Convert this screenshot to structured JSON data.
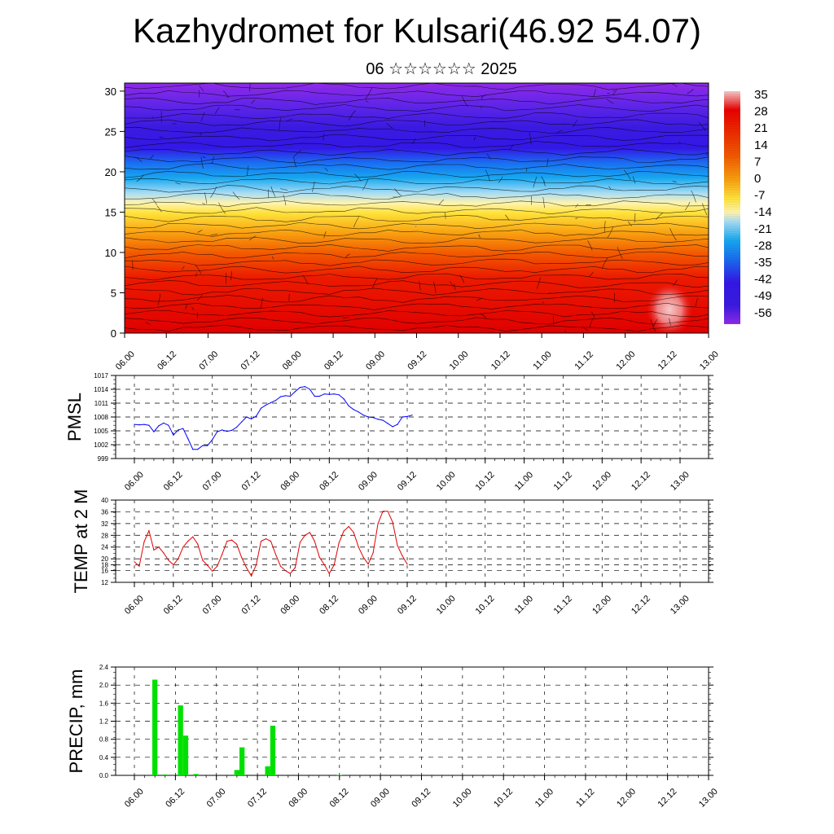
{
  "header": {
    "title": "Kazhydromet for Kulsari(46.92 54.07)",
    "subtitle": "06 ☆☆☆☆☆☆ 2025"
  },
  "chart_data": [
    {
      "type": "heatmap",
      "ylim": [
        0,
        31
      ],
      "y_ticks": [
        "0",
        "5",
        "10",
        "15",
        "20",
        "25",
        "30"
      ],
      "x_tick_labels": [
        "06.00",
        "06.12",
        "07.00",
        "07.12",
        "08.00",
        "08.12",
        "09.00",
        "09.12",
        "10.00",
        "10.12",
        "11.00",
        "11.12",
        "12.00",
        "12.12",
        "13.00"
      ],
      "colorbar_labels": [
        "35",
        "28",
        "21",
        "14",
        "7",
        "0",
        "-7",
        "-14",
        "-21",
        "-28",
        "-35",
        "-42",
        "-49",
        "-56"
      ],
      "colors": {
        "warm": "#e80000",
        "mid": "#ffe23a",
        "cool": "#17a8f0",
        "cold": "#3a1ae0",
        "top": "#8f2ae8"
      }
    },
    {
      "type": "line",
      "ylabel": "PMSL",
      "ylim": [
        999,
        1017
      ],
      "y_ticks": [
        "999",
        "1002",
        "1005",
        "1008",
        "1011",
        "1014",
        "1017"
      ],
      "x_tick_labels": [
        "06.00",
        "06.12",
        "07.00",
        "07.12",
        "08.00",
        "08.12",
        "09.00",
        "09.12",
        "10.00",
        "10.12",
        "11.00",
        "11.12",
        "12.00",
        "12.12",
        "13.00"
      ],
      "color": "#0000ff",
      "series": [
        {
          "values": [
            1006.4,
            1006.3,
            1006.4,
            1006.2,
            1004.8,
            1006.1,
            1006.7,
            1006.2,
            1004.1,
            1005.2,
            1005.5,
            1003.3,
            1001.0,
            1001.0,
            1001.8,
            1001.8,
            1003.1,
            1004.8,
            1005.2,
            1004.9,
            1005.1,
            1005.8,
            1006.9,
            1008.0,
            1007.6,
            1008.2,
            1009.9,
            1010.6,
            1011.1,
            1011.6,
            1012.4,
            1012.6,
            1012.5,
            1013.5,
            1014.4,
            1014.6,
            1014.0,
            1012.5,
            1012.5,
            1013.0,
            1012.9,
            1013.0,
            1012.8,
            1011.9,
            1010.4,
            1009.6,
            1009.1,
            1008.4,
            1008.0,
            1007.9,
            1007.5,
            1007.3,
            1006.6,
            1005.9,
            1006.4,
            1008.0,
            1008.1,
            1008.4
          ]
        }
      ]
    },
    {
      "type": "line",
      "ylabel": "TEMP at 2 M",
      "ylim": [
        12,
        40
      ],
      "y_ticks": [
        "12",
        "16",
        "18",
        "20",
        "24",
        "28",
        "32",
        "36",
        "40"
      ],
      "x_tick_labels": [
        "06.00",
        "06.12",
        "07.00",
        "07.12",
        "08.00",
        "08.12",
        "09.00",
        "09.12",
        "10.00",
        "10.12",
        "11.00",
        "11.12",
        "12.00",
        "12.12",
        "13.00"
      ],
      "color": "#e00000",
      "series": [
        {
          "values": [
            19.0,
            17.5,
            25.8,
            29.6,
            23.0,
            24.0,
            22.0,
            19.5,
            18.0,
            20.0,
            24.0,
            26.0,
            27.5,
            25.0,
            19.5,
            17.8,
            15.8,
            17.5,
            21.5,
            26.0,
            26.4,
            25.0,
            20.5,
            17.0,
            14.2,
            18.0,
            26.0,
            26.8,
            26.0,
            21.5,
            17.5,
            16.0,
            15.0,
            17.0,
            25.6,
            28.0,
            29.0,
            26.0,
            20.5,
            18.0,
            15.0,
            18.0,
            25.5,
            29.5,
            31.0,
            29.0,
            24.0,
            20.5,
            18.2,
            22.0,
            32.0,
            36.2,
            36.2,
            32.5,
            24.5,
            21.0,
            18.2
          ]
        }
      ]
    },
    {
      "type": "bar",
      "ylabel": "PRECIP, mm",
      "ylim": [
        0,
        2.4
      ],
      "y_ticks": [
        "0.0",
        "0.4",
        "0.8",
        "1.2",
        "1.6",
        "2.0",
        "2.4"
      ],
      "x_tick_labels": [
        "06.00",
        "06.12",
        "07.00",
        "07.12",
        "08.00",
        "08.12",
        "09.00",
        "09.12",
        "10.00",
        "10.12",
        "11.00",
        "11.12",
        "12.00",
        "12.12",
        "13.00"
      ],
      "color": "#00e000",
      "values": [
        0,
        0,
        0,
        0,
        2.12,
        0,
        0.02,
        0,
        0,
        1.55,
        0.88,
        0,
        0.03,
        0,
        0,
        0,
        0,
        0,
        0,
        0,
        0.12,
        0.62,
        0,
        0,
        0,
        0,
        0.2,
        1.1,
        0,
        0,
        0,
        0,
        0,
        0,
        0,
        0,
        0,
        0,
        0,
        0,
        0.01,
        0,
        0,
        0,
        0,
        0,
        0,
        0,
        0,
        0,
        0,
        0,
        0,
        0,
        0,
        0,
        0
      ]
    }
  ]
}
